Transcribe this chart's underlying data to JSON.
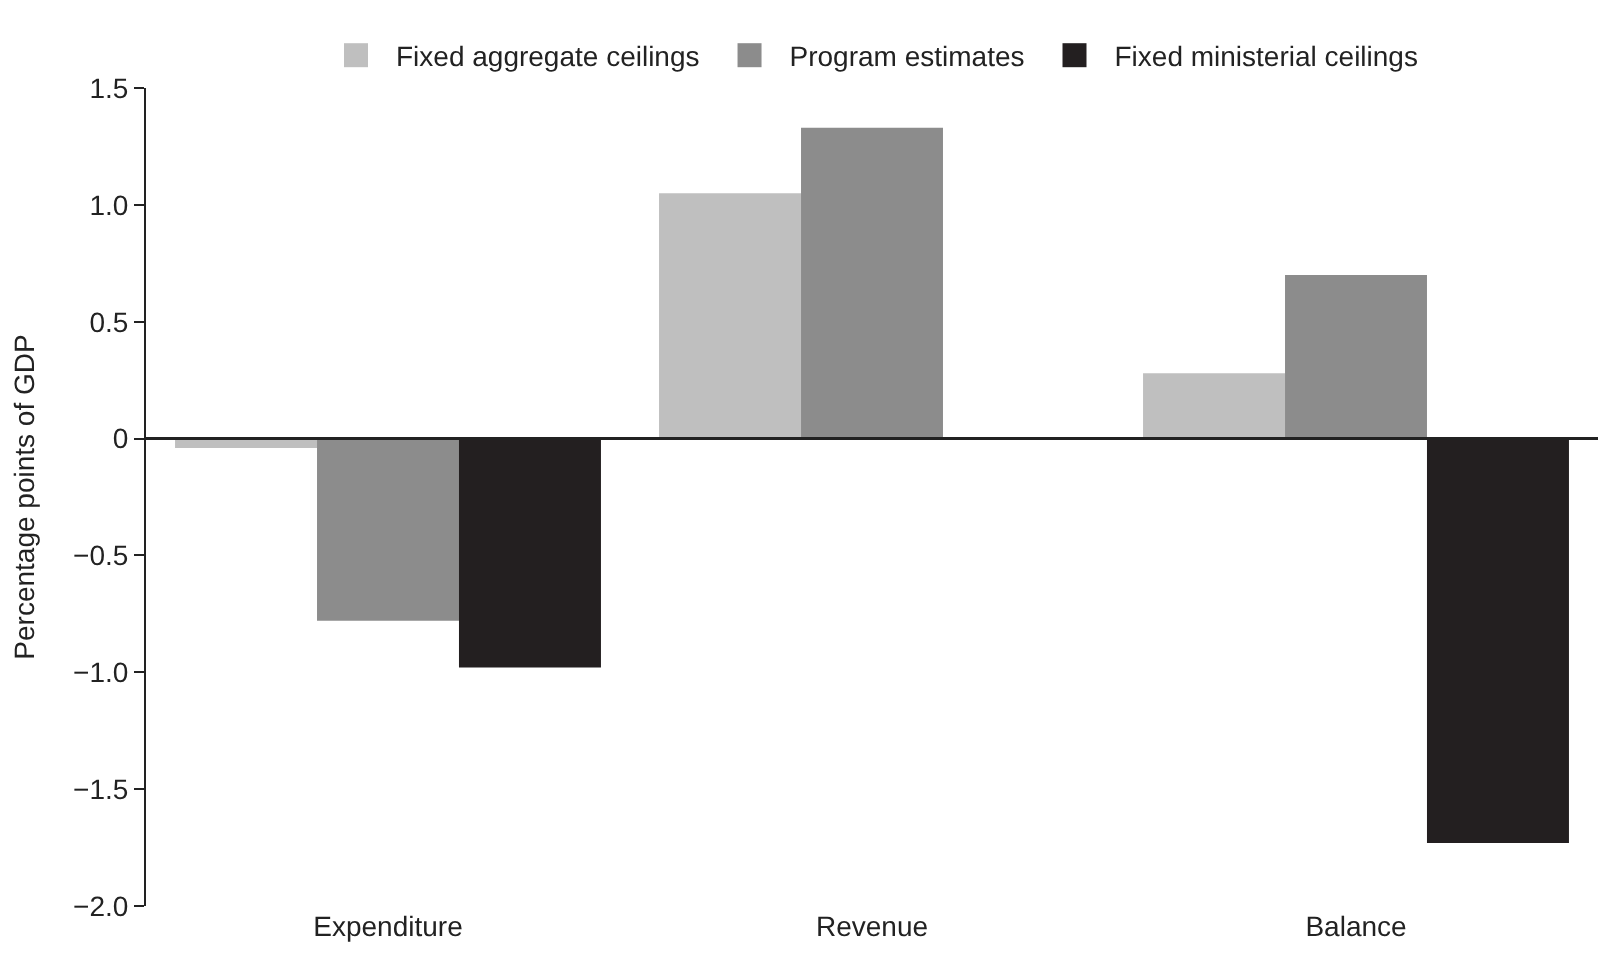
{
  "chart_data": {
    "type": "bar",
    "ylabel": "Percentage points of GDP",
    "categories": [
      "Expenditure",
      "Revenue",
      "Balance"
    ],
    "series": [
      {
        "name": "Fixed aggregate ceilings",
        "color": "#bfbfbf",
        "values": [
          -0.04,
          1.05,
          0.28
        ]
      },
      {
        "name": "Program estimates",
        "color": "#8c8c8c",
        "values": [
          -0.78,
          1.33,
          0.7
        ]
      },
      {
        "name": "Fixed ministerial ceilings",
        "color": "#231f20",
        "values": [
          -0.98,
          null,
          -1.73
        ]
      }
    ],
    "ylim": [
      -2.0,
      1.5
    ],
    "yticks": [
      {
        "value": -2.0,
        "label": "−2.0"
      },
      {
        "value": -1.5,
        "label": "−1.5"
      },
      {
        "value": -1.0,
        "label": "−1.0"
      },
      {
        "value": -0.5,
        "label": "−0.5"
      },
      {
        "value": 0,
        "label": "0"
      },
      {
        "value": 0.5,
        "label": "0.5"
      },
      {
        "value": 1.0,
        "label": "1.0"
      },
      {
        "value": 1.5,
        "label": "1.5"
      }
    ],
    "ref_lines": [
      {
        "axis": "y",
        "value": 0,
        "color": "#222222",
        "line_style": "solid"
      }
    ],
    "legend": "top"
  }
}
